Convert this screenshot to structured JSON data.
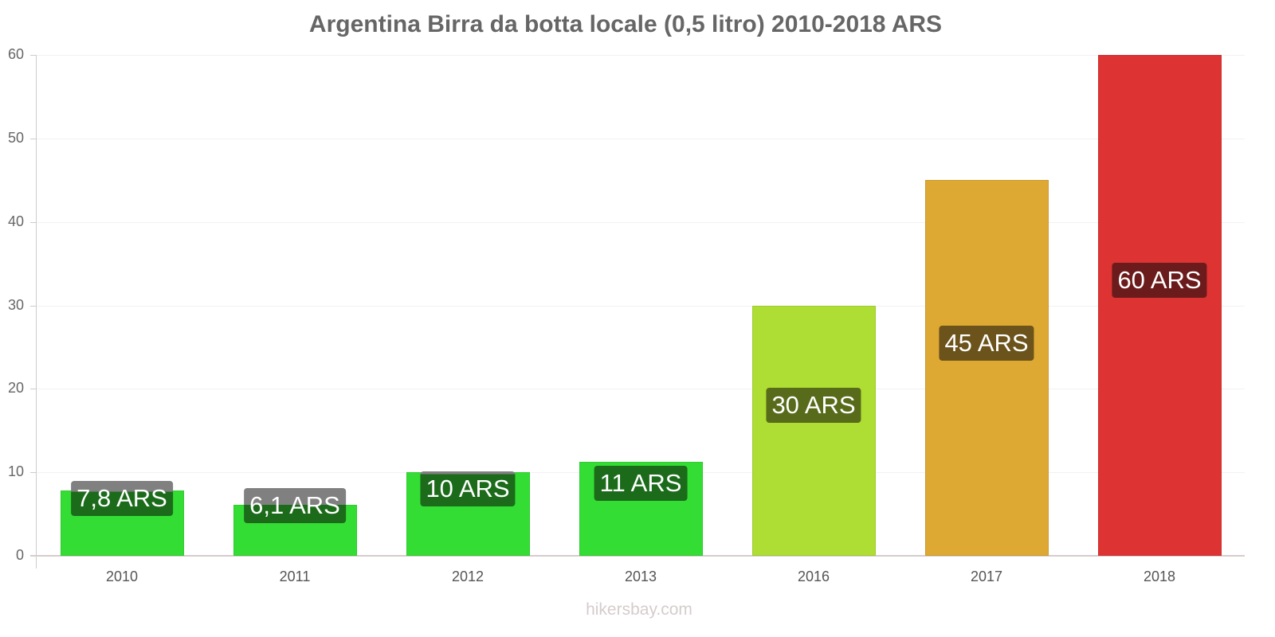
{
  "chart_data": {
    "type": "bar",
    "title": "Argentina Birra da botta locale (0,5 litro) 2010-2018 ARS",
    "xlabel": "",
    "ylabel": "",
    "ylim": [
      0,
      60
    ],
    "yticks": [
      0,
      10,
      20,
      30,
      40,
      50,
      60
    ],
    "grid": true,
    "legend": null,
    "categories": [
      "2010",
      "2011",
      "2012",
      "2013",
      "2016",
      "2017",
      "2018"
    ],
    "values": [
      7.8,
      6.1,
      10,
      11.3,
      30,
      45,
      60
    ],
    "data_labels": [
      "7,8 ARS",
      "6,1 ARS",
      "10 ARS",
      "11 ARS",
      "30 ARS",
      "45 ARS",
      "60 ARS"
    ],
    "bar_colors": [
      "#33dd33",
      "#33dd33",
      "#33dd33",
      "#33dd33",
      "#aedd33",
      "#dda933",
      "#dd3333"
    ],
    "label_colors": [
      "#1b6b1b",
      "#1b6b1b",
      "#1b6b1b",
      "#1b6b1b",
      "#586b1b",
      "#6b531b",
      "#6b1b1b"
    ],
    "watermark": "hikersbay.com"
  },
  "title": "Argentina Birra da botta locale (0,5 litro) 2010-2018 ARS",
  "watermark": "hikersbay.com"
}
